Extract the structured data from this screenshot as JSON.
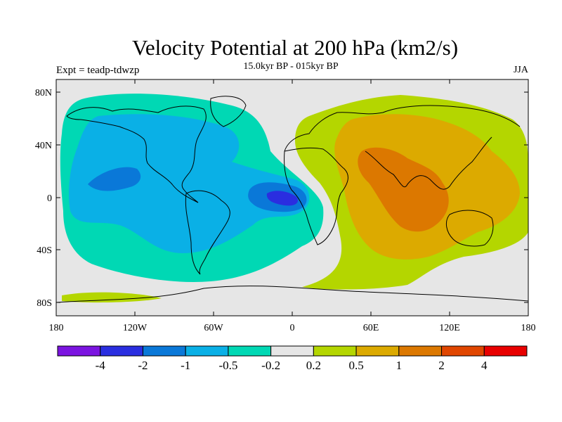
{
  "title": "Velocity Potential at 200 hPa (km2/s)",
  "subtitle": "15.0kyr BP - 015kyr BP",
  "left_label": "Expt = teadp-tdwzp",
  "right_label": "JJA",
  "lat_ticks": [
    "80N",
    "40N",
    "0",
    "40S",
    "80S"
  ],
  "lon_ticks": [
    "180",
    "120W",
    "60W",
    "0",
    "60E",
    "120E",
    "180"
  ],
  "colorbar": {
    "colors": [
      "#7b14e0",
      "#2a2ee0",
      "#0a78d8",
      "#0ab0e6",
      "#00d8b4",
      "#e6e6e6",
      "#b4d600",
      "#dcaa00",
      "#dc7800",
      "#e04600",
      "#e80000"
    ],
    "labels": [
      "-4",
      "-2",
      "-1",
      "-0.5",
      "-0.2",
      "0.2",
      "0.5",
      "1",
      "2",
      "4"
    ]
  }
}
